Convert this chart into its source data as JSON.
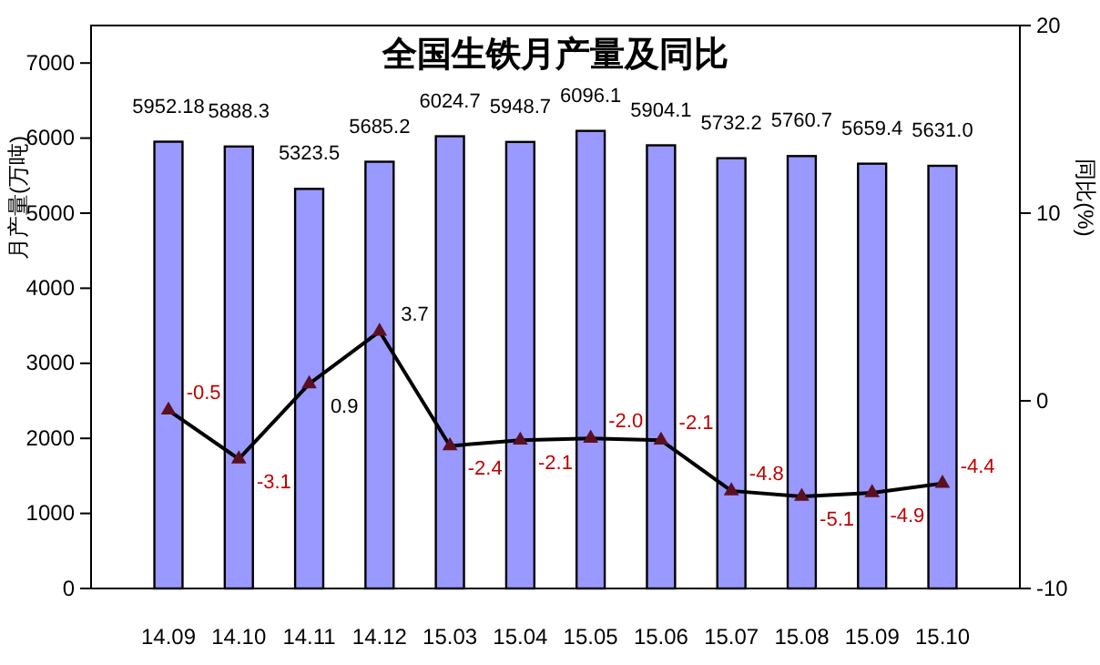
{
  "chart_data": {
    "type": "bar",
    "title": "全国生铁月产量及同比",
    "ylabel": "月产量(万吨)",
    "y2label": "同比(%)",
    "categories": [
      "14.09",
      "14.10",
      "14.11",
      "14.12",
      "15.03",
      "15.04",
      "15.05",
      "15.06",
      "15.07",
      "15.08",
      "15.09",
      "15.10"
    ],
    "series": [
      {
        "color": "#9999ff",
        "values": [
          5952.18,
          5888.3,
          5323.5,
          5685.2,
          6024.7,
          5948.7,
          6096.1,
          5904.1,
          5732.2,
          5760.7,
          5659.4,
          5631.0
        ],
        "value_labels": [
          "5952.18",
          "5888.3",
          "5323.5",
          "5685.2",
          "6024.7",
          "5948.7",
          "6096.1",
          "5904.1",
          "5732.2",
          "5760.7",
          "5659.4",
          "5631.0"
        ]
      },
      {
        "type": "line",
        "axis": "y2",
        "color": "#000000",
        "marker": "triangle",
        "values": [
          -0.5,
          -3.1,
          0.9,
          3.7,
          -2.4,
          -2.1,
          -2.0,
          -2.1,
          -4.8,
          -5.1,
          -4.9,
          -4.4
        ],
        "value_labels": [
          "-0.5",
          "-3.1",
          "0.9",
          "3.7",
          "-2.4",
          "-2.1",
          "-2.0",
          "-2.1",
          "-4.8",
          "-5.1",
          "-4.9",
          "-4.4"
        ]
      }
    ],
    "ylim": [
      0,
      7500
    ],
    "yticks": [
      0,
      1000,
      2000,
      3000,
      4000,
      5000,
      6000,
      7000
    ],
    "y2lim": [
      -10,
      20
    ],
    "y2ticks": [
      -10,
      0,
      10,
      20
    ],
    "grid": false
  }
}
